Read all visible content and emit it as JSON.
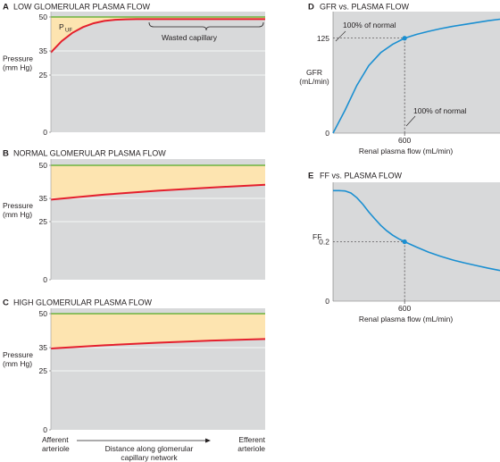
{
  "chart_data": [
    {
      "id": "A",
      "type": "area",
      "panel_letter": "A",
      "title": "LOW GLOMERULAR PLASMA FLOW",
      "ylabel_lines": [
        "Pressure",
        "(mm Hg)"
      ],
      "yticks": [
        "0",
        "25",
        "35",
        "50"
      ],
      "ylim": [
        0,
        53
      ],
      "xlim": [
        0,
        1
      ],
      "series": [
        {
          "role": "glomerular",
          "color": "#6db33f",
          "x": [
            0,
            1
          ],
          "y": [
            50,
            50
          ]
        },
        {
          "role": "oncotic",
          "color": "#e41f2d",
          "x": [
            0,
            0.05,
            0.1,
            0.15,
            0.2,
            0.25,
            0.3,
            0.35,
            0.4,
            0.45,
            0.5,
            0.6,
            0.7,
            0.8,
            0.9,
            1
          ],
          "y": [
            34.6,
            39.5,
            43.1,
            45.6,
            47.3,
            48.3,
            48.8,
            49.0,
            49.1,
            49.1,
            49.1,
            49.1,
            49.1,
            49.1,
            49.1,
            49.1
          ]
        }
      ],
      "annotations": [
        {
          "text": "P",
          "subscript": "UF"
        },
        {
          "text": "Wasted capillary"
        }
      ]
    },
    {
      "id": "B",
      "type": "area",
      "panel_letter": "B",
      "title": "NORMAL GLOMERULAR PLASMA FLOW",
      "ylabel_lines": [
        "Pressure",
        "(mm Hg)"
      ],
      "yticks": [
        "0",
        "25",
        "35",
        "50"
      ],
      "ylim": [
        0,
        53
      ],
      "xlim": [
        0,
        1
      ],
      "series": [
        {
          "role": "glomerular",
          "color": "#6db33f",
          "x": [
            0,
            1
          ],
          "y": [
            50,
            50
          ]
        },
        {
          "role": "oncotic",
          "color": "#e41f2d",
          "x": [
            0,
            0.25,
            0.5,
            0.75,
            1
          ],
          "y": [
            35,
            37.2,
            38.9,
            40.3,
            41.5
          ]
        }
      ]
    },
    {
      "id": "C",
      "type": "area",
      "panel_letter": "C",
      "title": "HIGH GLOMERULAR PLASMA FLOW",
      "ylabel_lines": [
        "Pressure",
        "(mm Hg)"
      ],
      "yticks": [
        "0",
        "25",
        "35",
        "50"
      ],
      "ylim": [
        0,
        53
      ],
      "xlim": [
        0,
        1
      ],
      "series": [
        {
          "role": "glomerular",
          "color": "#6db33f",
          "x": [
            0,
            1
          ],
          "y": [
            50,
            50
          ]
        },
        {
          "role": "oncotic",
          "color": "#e41f2d",
          "x": [
            0,
            0.25,
            0.5,
            0.75,
            1
          ],
          "y": [
            35,
            36.4,
            37.5,
            38.4,
            39.1
          ]
        }
      ],
      "x_axis": {
        "left_lines": [
          "Afferent",
          "arteriole"
        ],
        "center_lines": [
          "Distance along glomerular",
          "capillary network"
        ],
        "right_lines": [
          "Efferent",
          "arteriole"
        ]
      }
    },
    {
      "id": "D",
      "type": "line",
      "panel_letter": "D",
      "title": "GFR vs. PLASMA FLOW",
      "ylabel_lines": [
        "GFR",
        "(mL/min)"
      ],
      "xlabel": "Renal plasma flow (mL/min)",
      "yticks": [
        "0",
        "125"
      ],
      "xticks": [
        "600"
      ],
      "xlim": [
        0,
        1400
      ],
      "ylim": [
        0,
        160
      ],
      "series": [
        {
          "color": "#1a8fd1",
          "x": [
            0,
            100,
            200,
            300,
            400,
            500,
            600,
            700,
            800,
            900,
            1000,
            1100,
            1200,
            1300,
            1400
          ],
          "y": [
            0,
            30,
            63,
            89,
            106,
            117,
            125,
            130,
            134,
            137.5,
            140.5,
            143,
            145.5,
            148,
            150
          ]
        }
      ],
      "highlight_point": {
        "x": 600,
        "y": 125
      },
      "annotations": [
        "100% of normal",
        "100% of normal"
      ]
    },
    {
      "id": "E",
      "type": "line",
      "panel_letter": "E",
      "title": "FF vs. PLASMA FLOW",
      "ylabel_lines": [
        "FF"
      ],
      "xlabel": "Renal plasma flow (mL/min)",
      "yticks": [
        "0",
        "0.2"
      ],
      "xticks": [
        "600"
      ],
      "xlim": [
        0,
        1400
      ],
      "ylim": [
        0,
        0.4
      ],
      "series": [
        {
          "color": "#1a8fd1",
          "x": [
            0,
            50,
            100,
            150,
            200,
            250,
            300,
            350,
            400,
            450,
            500,
            550,
            600,
            700,
            800,
            900,
            1000,
            1100,
            1200,
            1300,
            1400
          ],
          "y": [
            0.372,
            0.372,
            0.371,
            0.364,
            0.348,
            0.326,
            0.3,
            0.277,
            0.255,
            0.237,
            0.222,
            0.21,
            0.2,
            0.182,
            0.165,
            0.151,
            0.139,
            0.129,
            0.12,
            0.111,
            0.103
          ]
        }
      ],
      "highlight_point": {
        "x": 600,
        "y": 0.2
      }
    }
  ],
  "colors": {
    "plot_background": "#d8d9da",
    "filtration_fill": "#fde4b0",
    "gridline": "#ffffff",
    "glomerular_line": "#6db33f",
    "oncotic_line": "#e41f2d",
    "curve": "#1a8fd1"
  }
}
